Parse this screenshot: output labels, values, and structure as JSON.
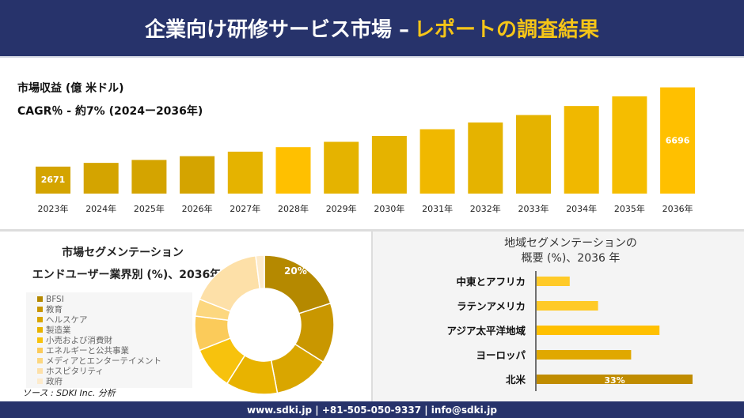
{
  "header": {
    "title": "企業向け研修サービス市場 –",
    "title_accent": "レポートの調査結果"
  },
  "top": {
    "subtitle1": "市場収益 (億 米ドル)",
    "subtitle2": "CAGR％ - 約7% (2024ー2036年)"
  },
  "chart_data": [
    {
      "type": "bar",
      "categories": [
        "2023年",
        "2024年",
        "2025年",
        "2026年",
        "2027年",
        "2028年",
        "2029年",
        "2030年",
        "2031年",
        "2032年",
        "2033年",
        "2034年",
        "2035年",
        "2036年"
      ],
      "values": [
        2671,
        2860,
        3010,
        3200,
        3430,
        3660,
        3930,
        4230,
        4570,
        4910,
        5290,
        5750,
        6240,
        6696
      ],
      "data_labels": {
        "0": "2671",
        "13": "6696"
      },
      "ylim": [
        1300,
        7000
      ],
      "grid": false,
      "colors": [
        "#d4a400",
        "#d4a400",
        "#d4a400",
        "#d4a400",
        "#e5b300",
        "#ffc000",
        "#e5b300",
        "#e5b300",
        "#f0b800",
        "#e5b300",
        "#e5b300",
        "#f0b800",
        "#f5bd00",
        "#ffc000"
      ]
    },
    {
      "type": "pie",
      "title": "市場セグメンテーション",
      "subtitle": "エンドユーザー業界別 (%)、2036年",
      "labels": [
        "BFSI",
        "教育",
        "ヘルスケア",
        "製造業",
        "小売および消費財",
        "エネルギーと公共事業",
        "メディアとエンターテイメント",
        "ホスピタリティ",
        "政府"
      ],
      "values": [
        20,
        14,
        13,
        12,
        10,
        8,
        4,
        17,
        2
      ],
      "data_labels": {
        "0": "20%"
      },
      "colors": [
        "#b58900",
        "#c99700",
        "#d9a600",
        "#e8b300",
        "#f7c20d",
        "#fbcb5a",
        "#fcd77f",
        "#fde0a8",
        "#fdebcc"
      ],
      "donut": true,
      "legend": "left"
    },
    {
      "type": "bar",
      "orientation": "horizontal",
      "title": "地域セグメンテーションの",
      "subtitle": "概要 (%)、2036 年",
      "categories": [
        "中東とアフリカ",
        "ラテンアメリカ",
        "アジア太平洋地域",
        "ヨーロッパ",
        "北米"
      ],
      "values": [
        7,
        13,
        26,
        20,
        33
      ],
      "data_labels": {
        "4": "33%"
      },
      "colors": [
        "#ffca28",
        "#ffca28",
        "#ffc000",
        "#e0a800",
        "#c08c00"
      ]
    }
  ],
  "source": "ソース : SDKI Inc. 分析",
  "footer": "www.sdki.jp | +81-505-050-9337 | info@sdki.jp"
}
